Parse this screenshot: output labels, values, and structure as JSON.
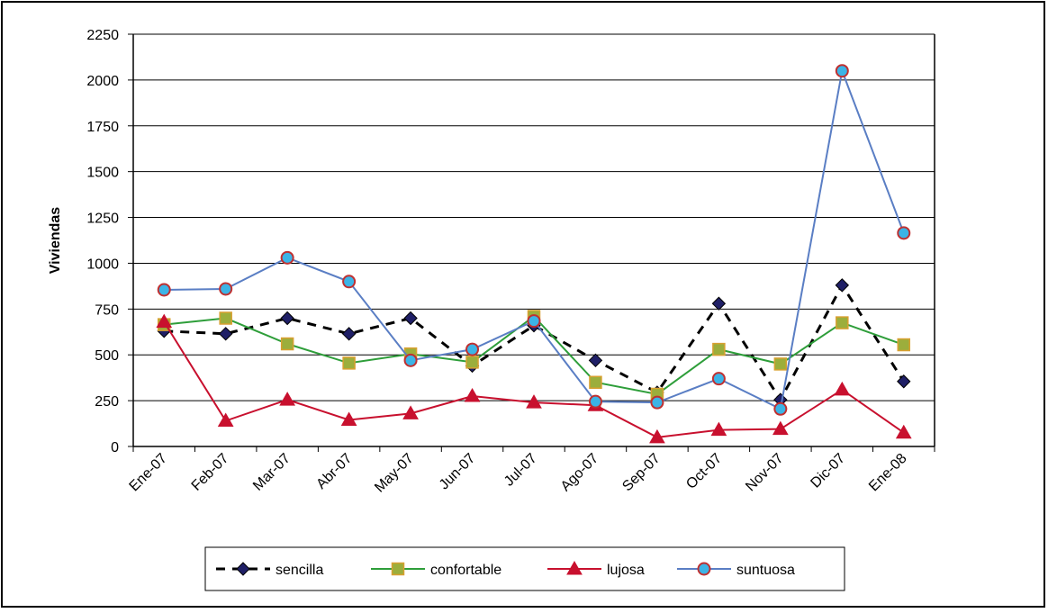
{
  "chart_data": {
    "type": "line",
    "y_label": "Viviendas",
    "categories": [
      "Ene-07",
      "Feb-07",
      "Mar-07",
      "Abr-07",
      "May-07",
      "Jun-07",
      "Jul-07",
      "Ago-07",
      "Sep-07",
      "Oct-07",
      "Nov-07",
      "Dic-07",
      "Ene-08"
    ],
    "series": [
      {
        "name": "sencilla",
        "color": "#000000",
        "marker": "diamond",
        "dashed": true,
        "values": [
          630,
          615,
          700,
          615,
          700,
          440,
          660,
          470,
          295,
          780,
          255,
          880,
          355
        ]
      },
      {
        "name": "confortable",
        "color": "#2e9e3a",
        "marker": "square",
        "dashed": false,
        "values": [
          665,
          700,
          560,
          455,
          505,
          460,
          710,
          350,
          285,
          530,
          450,
          675,
          555
        ]
      },
      {
        "name": "lujosa",
        "color": "#c8102e",
        "marker": "triangle",
        "dashed": false,
        "values": [
          680,
          140,
          255,
          145,
          180,
          275,
          240,
          225,
          50,
          90,
          95,
          310,
          75
        ]
      },
      {
        "name": "suntuosa",
        "color": "#5a7ec4",
        "marker": "circle",
        "dashed": false,
        "values": [
          855,
          860,
          1030,
          900,
          470,
          530,
          685,
          245,
          240,
          370,
          205,
          2050,
          1165
        ]
      }
    ],
    "ylim": [
      0,
      2250
    ],
    "yticks": [
      0,
      250,
      500,
      750,
      1000,
      1250,
      1500,
      1750,
      2000,
      2250
    ],
    "grid": true
  }
}
